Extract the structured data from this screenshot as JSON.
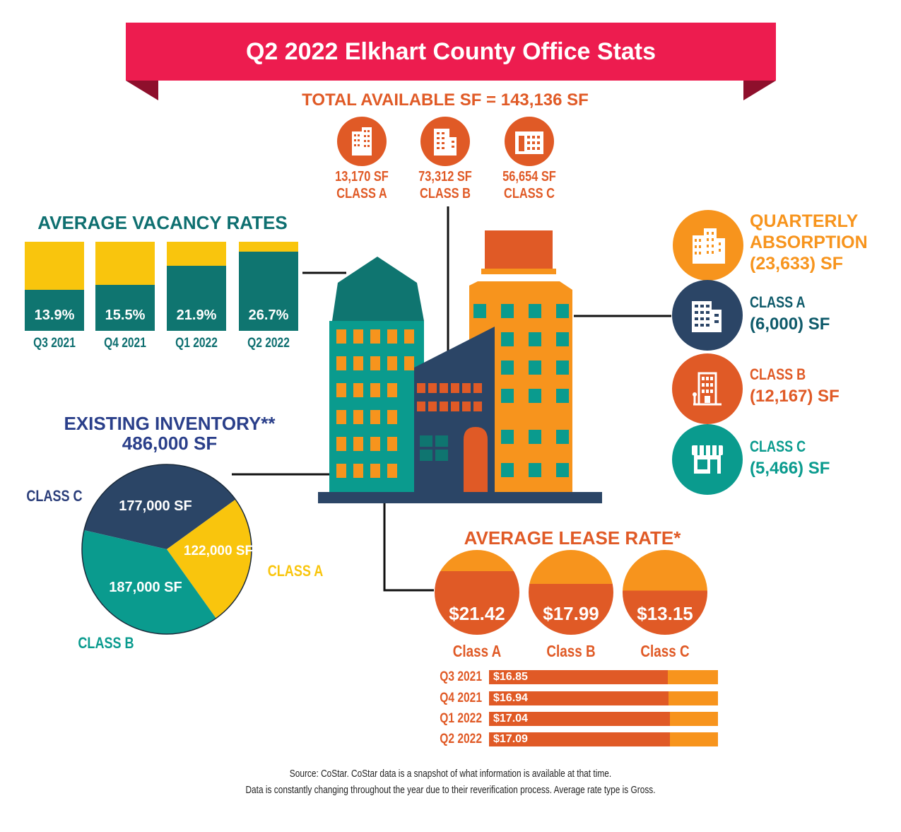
{
  "title": "Q2 2022 Elkhart County Office Stats",
  "available": {
    "heading": "TOTAL AVAILABLE SF = 143,136 SF",
    "items": [
      {
        "sf": "13,170 SF",
        "cls": "CLASS A",
        "icon": "tall-building-icon"
      },
      {
        "sf": "73,312 SF",
        "cls": "CLASS B",
        "icon": "office-tower-icon"
      },
      {
        "sf": "56,654 SF",
        "cls": "CLASS C",
        "icon": "low-building-icon"
      }
    ]
  },
  "absorption": {
    "heading1": "QUARTERLY",
    "heading2": "ABSORPTION",
    "total": "(23,633) SF",
    "classes": [
      {
        "cls": "CLASS A",
        "value": "(6,000) SF"
      },
      {
        "cls": "CLASS B",
        "value": "(12,167) SF"
      },
      {
        "cls": "CLASS C",
        "value": "(5,466) SF"
      }
    ]
  },
  "inventory": {
    "heading": "EXISTING INVENTORY**",
    "total": "486,000 SF",
    "class_c_label": "CLASS C",
    "class_a_label": "CLASS A",
    "class_b_label": "CLASS B",
    "class_c_value": "177,000 SF",
    "class_a_value": "122,000 SF",
    "class_b_value": "187,000 SF"
  },
  "lease": {
    "heading": "AVERAGE LEASE RATE*",
    "classes": [
      {
        "rate": "$21.42",
        "cls": "Class A"
      },
      {
        "rate": "$17.99",
        "cls": "Class B"
      },
      {
        "rate": "$13.15",
        "cls": "Class C"
      }
    ]
  },
  "footer": {
    "line1": "Source: CoStar. CoStar data is a snapshot of what information is available at that time.",
    "line2": "Data is constantly changing throughout the year due to their reverification process. Average rate type is Gross."
  },
  "colors": {
    "red": "#ed1c4f",
    "orange": "#e05a26",
    "amber": "#f7941d",
    "yellow": "#f9c50d",
    "teal": "#0f7570",
    "navy": "#2b4566",
    "green": "#0a9b8e"
  },
  "chart_data": [
    {
      "type": "bar",
      "title": "AVERAGE VACANCY RATES",
      "categories": [
        "Q3 2021",
        "Q4 2021",
        "Q1 2022",
        "Q2 2022"
      ],
      "values": [
        13.9,
        15.5,
        21.9,
        26.7
      ],
      "labels": [
        "13.9%",
        "15.5%",
        "21.9%",
        "26.7%"
      ],
      "ylim": [
        0,
        30
      ]
    },
    {
      "type": "pie",
      "title": "EXISTING INVENTORY** 486,000 SF",
      "categories": [
        "CLASS C",
        "CLASS A",
        "CLASS B"
      ],
      "values": [
        177000,
        122000,
        187000
      ]
    },
    {
      "type": "bar",
      "title": "AVERAGE LEASE RATE*",
      "categories": [
        "Q3 2021",
        "Q4 2021",
        "Q1 2022",
        "Q2 2022"
      ],
      "values": [
        16.85,
        16.94,
        17.04,
        17.09
      ],
      "labels": [
        "$16.85",
        "$16.94",
        "$17.04",
        "$17.09"
      ],
      "xlim": [
        0,
        21.6
      ]
    }
  ]
}
